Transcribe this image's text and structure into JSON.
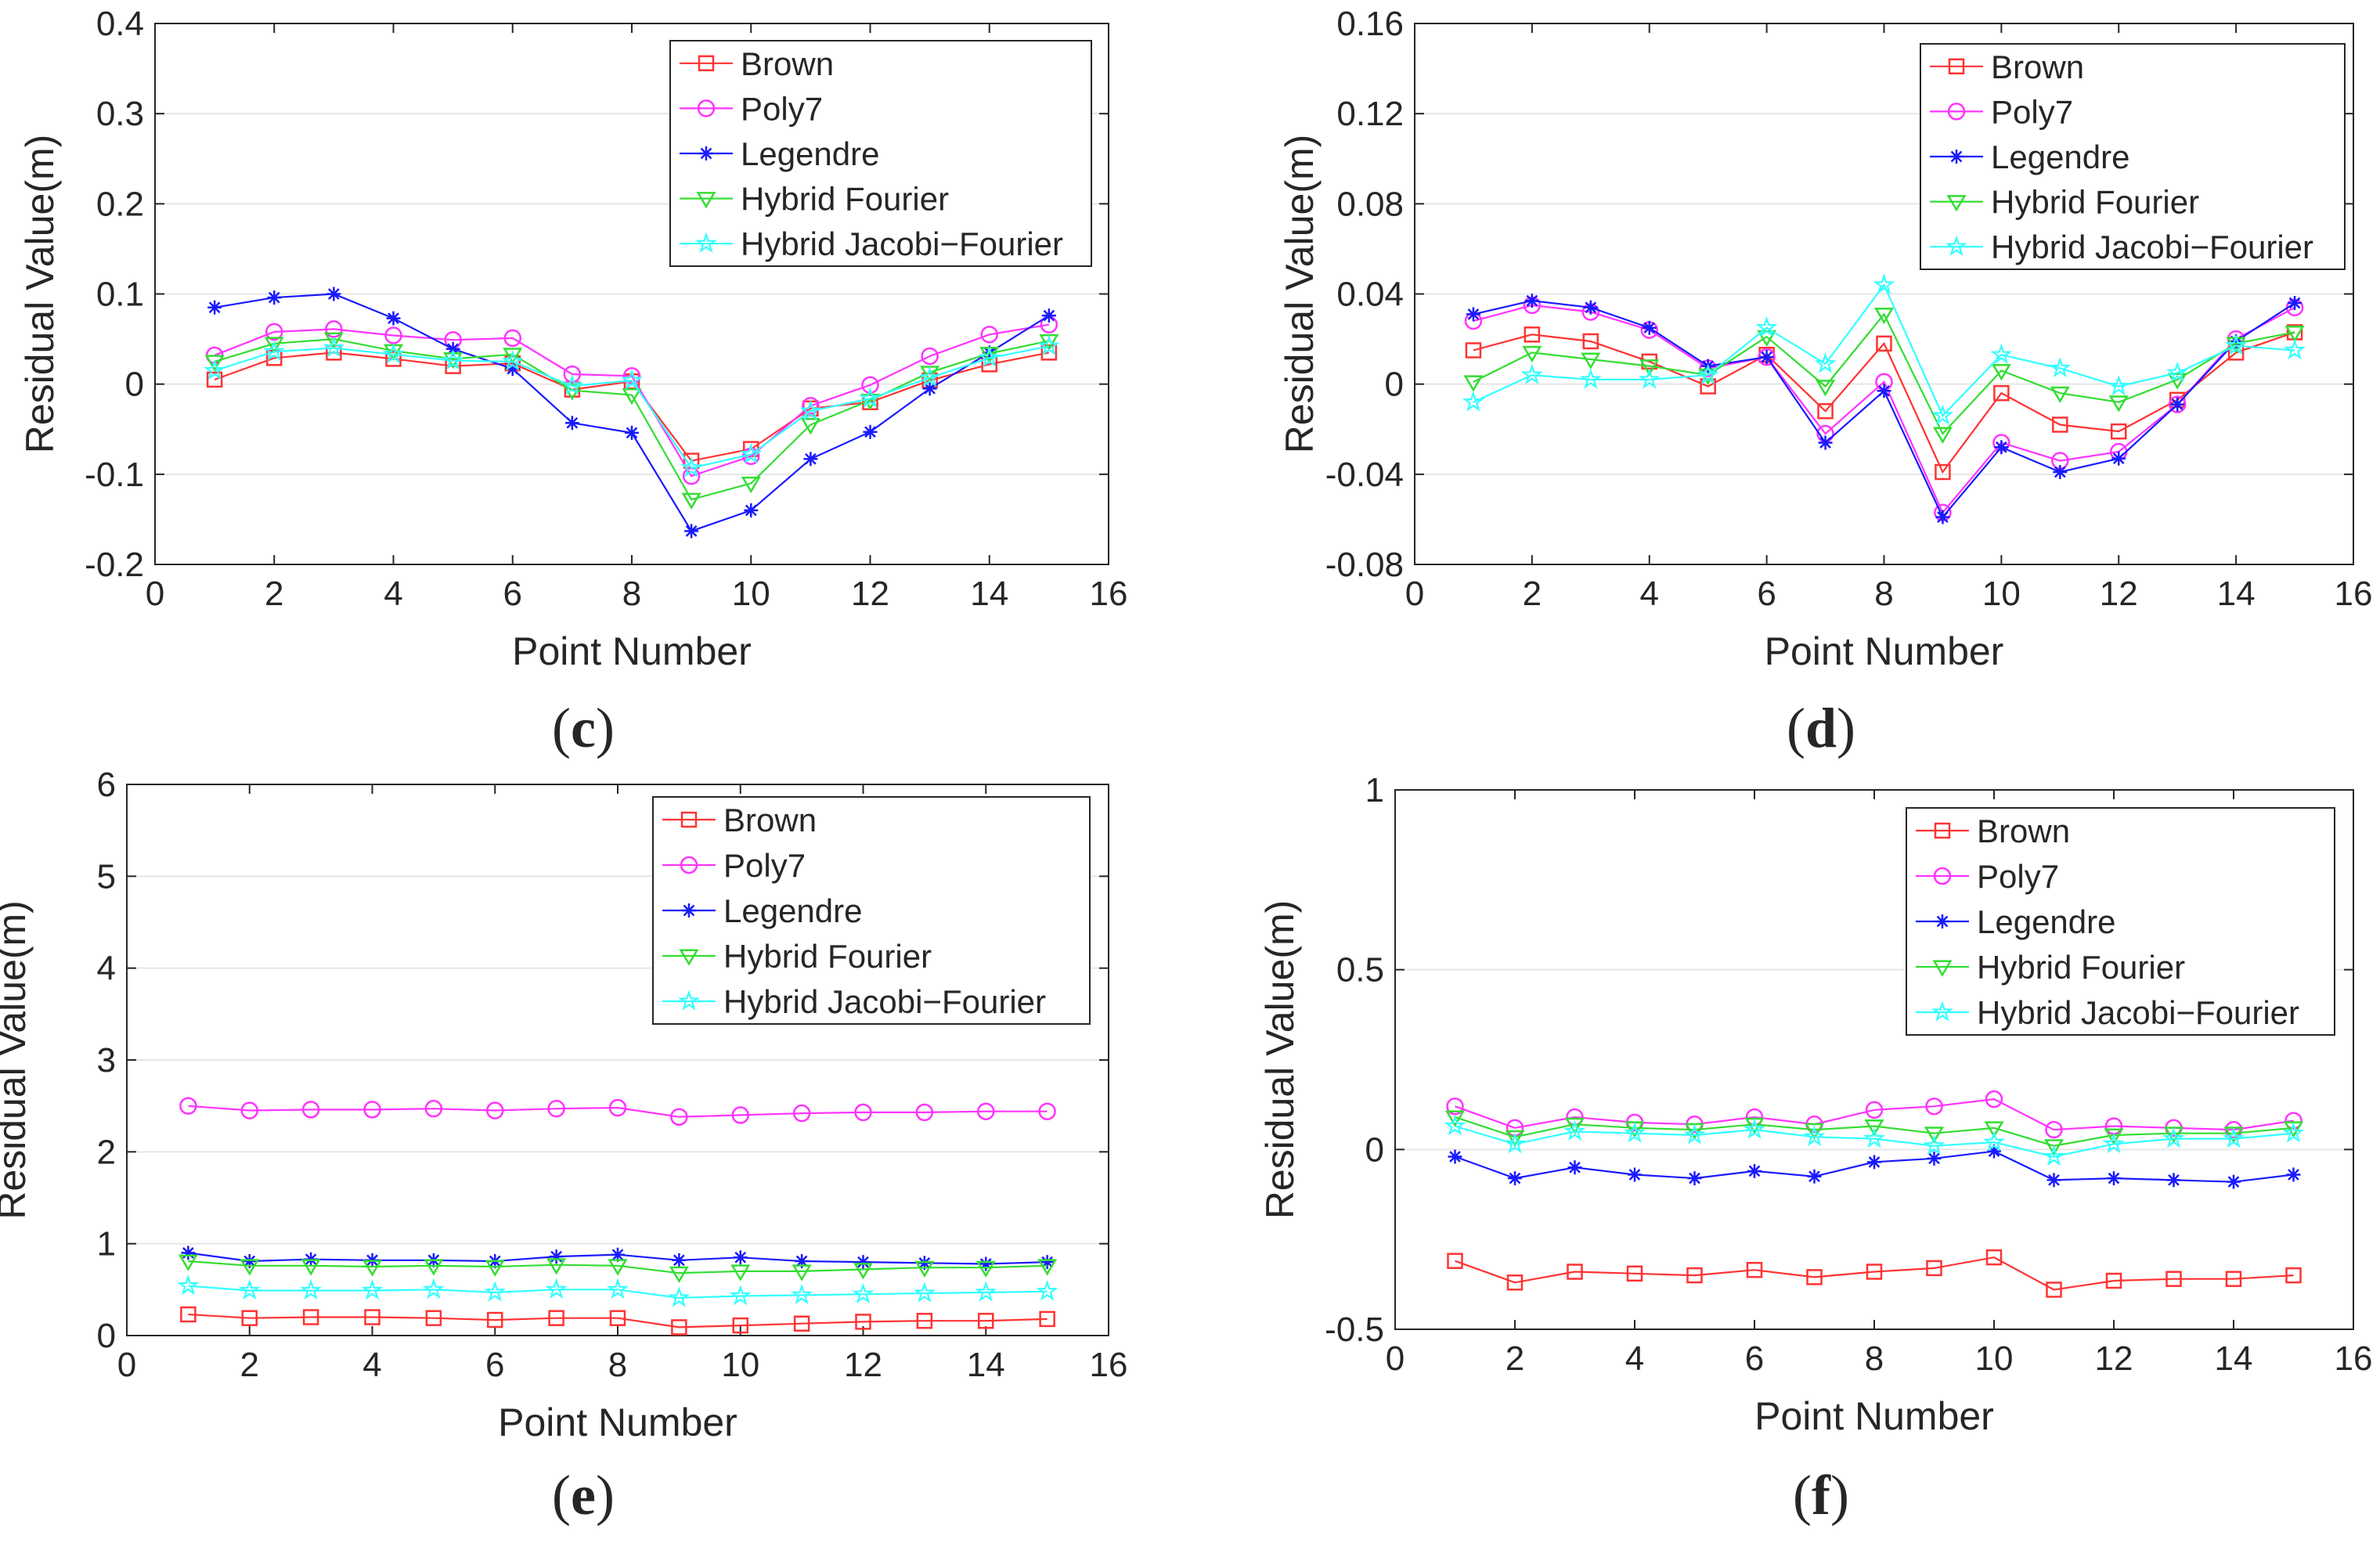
{
  "chart_data": [
    {
      "panel": "(c)",
      "type": "line",
      "xlabel": "Point Number",
      "ylabel": "Residual Value(m)",
      "xlim": [
        0,
        16
      ],
      "ylim": [
        -0.2,
        0.4
      ],
      "xticks": [
        0,
        2,
        4,
        6,
        8,
        10,
        12,
        14,
        16
      ],
      "yticks": [
        -0.2,
        -0.1,
        0,
        0.1,
        0.2,
        0.3,
        0.4
      ],
      "ytick_labels": [
        "-0.2",
        "-0.1",
        "0",
        "0.1",
        "0.2",
        "0.3",
        "0.4"
      ],
      "grid": true,
      "legend_position": "top-right",
      "x": [
        1,
        2,
        3,
        4,
        5,
        6,
        7,
        8,
        9,
        10,
        11,
        12,
        13,
        14,
        15
      ],
      "series": [
        {
          "name": "Brown",
          "color": "#ff3333",
          "marker": "square",
          "values": [
            0.005,
            0.029,
            0.035,
            0.028,
            0.02,
            0.023,
            -0.006,
            0.003,
            -0.085,
            -0.072,
            -0.027,
            -0.02,
            0.004,
            0.022,
            0.035
          ]
        },
        {
          "name": "Poly7",
          "color": "#ff33ff",
          "marker": "circle",
          "values": [
            0.032,
            0.058,
            0.061,
            0.054,
            0.049,
            0.051,
            0.011,
            0.009,
            -0.102,
            -0.08,
            -0.024,
            -0.001,
            0.031,
            0.055,
            0.066
          ]
        },
        {
          "name": "Legendre",
          "color": "#1a1aff",
          "marker": "star",
          "values": [
            0.085,
            0.096,
            0.1,
            0.073,
            0.039,
            0.017,
            -0.043,
            -0.054,
            -0.163,
            -0.14,
            -0.083,
            -0.053,
            -0.005,
            0.035,
            0.076
          ]
        },
        {
          "name": "Hybrid Fourier",
          "color": "#33dd33",
          "marker": "triangle-down",
          "values": [
            0.025,
            0.045,
            0.05,
            0.037,
            0.028,
            0.033,
            -0.007,
            -0.012,
            -0.128,
            -0.11,
            -0.045,
            -0.018,
            0.013,
            0.034,
            0.048
          ]
        },
        {
          "name": "Hybrid Jacobi−Fourier",
          "color": "#33ffff",
          "marker": "pentagram",
          "values": [
            0.015,
            0.036,
            0.04,
            0.033,
            0.026,
            0.025,
            -0.002,
            0.004,
            -0.093,
            -0.078,
            -0.03,
            -0.016,
            0.007,
            0.029,
            0.042
          ]
        }
      ]
    },
    {
      "panel": "(d)",
      "type": "line",
      "xlabel": "Point Number",
      "ylabel": "Residual Value(m)",
      "xlim": [
        0,
        16
      ],
      "ylim": [
        -0.08,
        0.16
      ],
      "xticks": [
        0,
        2,
        4,
        6,
        8,
        10,
        12,
        14,
        16
      ],
      "yticks": [
        -0.08,
        -0.04,
        0,
        0.04,
        0.08,
        0.12,
        0.16
      ],
      "ytick_labels": [
        "-0.08",
        "-0.04",
        "0",
        "0.04",
        "0.08",
        "0.12",
        "0.16"
      ],
      "grid": true,
      "legend_position": "top-right",
      "x": [
        1,
        2,
        3,
        4,
        5,
        6,
        7,
        8,
        9,
        10,
        11,
        12,
        13,
        14,
        15
      ],
      "series": [
        {
          "name": "Brown",
          "color": "#ff3333",
          "marker": "square",
          "values": [
            0.015,
            0.022,
            0.019,
            0.01,
            -0.001,
            0.013,
            -0.012,
            0.018,
            -0.039,
            -0.004,
            -0.018,
            -0.021,
            -0.007,
            0.014,
            0.023
          ]
        },
        {
          "name": "Poly7",
          "color": "#ff33ff",
          "marker": "circle",
          "values": [
            0.028,
            0.035,
            0.032,
            0.024,
            0.007,
            0.012,
            -0.022,
            0.001,
            -0.057,
            -0.026,
            -0.034,
            -0.03,
            -0.009,
            0.02,
            0.034
          ]
        },
        {
          "name": "Legendre",
          "color": "#1a1aff",
          "marker": "star",
          "values": [
            0.031,
            0.037,
            0.034,
            0.025,
            0.008,
            0.012,
            -0.026,
            -0.003,
            -0.059,
            -0.028,
            -0.039,
            -0.033,
            -0.009,
            0.019,
            0.036
          ]
        },
        {
          "name": "Hybrid Fourier",
          "color": "#33dd33",
          "marker": "triangle-down",
          "values": [
            0.001,
            0.014,
            0.011,
            0.008,
            0.004,
            0.021,
            -0.001,
            0.031,
            -0.022,
            0.006,
            -0.004,
            -0.008,
            0.002,
            0.018,
            0.023
          ]
        },
        {
          "name": "Hybrid Jacobi−Fourier",
          "color": "#33ffff",
          "marker": "pentagram",
          "values": [
            -0.008,
            0.004,
            0.002,
            0.002,
            0.004,
            0.025,
            0.009,
            0.044,
            -0.014,
            0.013,
            0.007,
            -0.001,
            0.005,
            0.017,
            0.015
          ]
        }
      ]
    },
    {
      "panel": "(e)",
      "type": "line",
      "xlabel": "Point Number",
      "ylabel": "Residual Value(m)",
      "xlim": [
        0,
        16
      ],
      "ylim": [
        0,
        6
      ],
      "xticks": [
        0,
        2,
        4,
        6,
        8,
        10,
        12,
        14,
        16
      ],
      "yticks": [
        0,
        1,
        2,
        3,
        4,
        5,
        6
      ],
      "ytick_labels": [
        "0",
        "1",
        "2",
        "3",
        "4",
        "5",
        "6"
      ],
      "grid": true,
      "legend_position": "top-right",
      "x": [
        1,
        2,
        3,
        4,
        5,
        6,
        7,
        8,
        9,
        10,
        11,
        12,
        13,
        14,
        15
      ],
      "series": [
        {
          "name": "Brown",
          "color": "#ff3333",
          "marker": "square",
          "values": [
            0.23,
            0.19,
            0.2,
            0.2,
            0.19,
            0.17,
            0.19,
            0.19,
            0.09,
            0.11,
            0.13,
            0.15,
            0.16,
            0.16,
            0.18
          ]
        },
        {
          "name": "Poly7",
          "color": "#ff33ff",
          "marker": "circle",
          "values": [
            2.5,
            2.45,
            2.46,
            2.46,
            2.47,
            2.45,
            2.47,
            2.48,
            2.38,
            2.4,
            2.42,
            2.43,
            2.43,
            2.44,
            2.44
          ]
        },
        {
          "name": "Legendre",
          "color": "#1a1aff",
          "marker": "star",
          "values": [
            0.9,
            0.81,
            0.83,
            0.82,
            0.82,
            0.81,
            0.86,
            0.88,
            0.82,
            0.85,
            0.81,
            0.8,
            0.79,
            0.78,
            0.8
          ]
        },
        {
          "name": "Hybrid Fourier",
          "color": "#33dd33",
          "marker": "triangle-down",
          "values": [
            0.81,
            0.76,
            0.76,
            0.75,
            0.76,
            0.75,
            0.77,
            0.76,
            0.68,
            0.7,
            0.7,
            0.72,
            0.74,
            0.74,
            0.76
          ]
        },
        {
          "name": "Hybrid Jacobi−Fourier",
          "color": "#33ffff",
          "marker": "pentagram",
          "values": [
            0.54,
            0.49,
            0.49,
            0.49,
            0.5,
            0.47,
            0.5,
            0.5,
            0.41,
            0.43,
            0.44,
            0.45,
            0.46,
            0.47,
            0.48
          ]
        }
      ]
    },
    {
      "panel": "(f)",
      "type": "line",
      "xlabel": "Point Number",
      "ylabel": "Residual Value(m)",
      "xlim": [
        0,
        16
      ],
      "ylim": [
        -0.5,
        1
      ],
      "xticks": [
        0,
        2,
        4,
        6,
        8,
        10,
        12,
        14,
        16
      ],
      "yticks": [
        -0.5,
        0,
        0.5,
        1
      ],
      "ytick_labels": [
        "-0.5",
        "0",
        "0.5",
        "1"
      ],
      "grid": true,
      "legend_position": "top-right",
      "x": [
        1,
        2,
        3,
        4,
        5,
        6,
        7,
        8,
        9,
        10,
        11,
        12,
        13,
        14,
        15
      ],
      "series": [
        {
          "name": "Brown",
          "color": "#ff3333",
          "marker": "square",
          "values": [
            -0.31,
            -0.37,
            -0.34,
            -0.345,
            -0.35,
            -0.335,
            -0.355,
            -0.34,
            -0.33,
            -0.3,
            -0.39,
            -0.365,
            -0.36,
            -0.36,
            -0.35
          ]
        },
        {
          "name": "Poly7",
          "color": "#ff33ff",
          "marker": "circle",
          "values": [
            0.12,
            0.06,
            0.09,
            0.075,
            0.07,
            0.09,
            0.07,
            0.11,
            0.12,
            0.14,
            0.055,
            0.065,
            0.06,
            0.055,
            0.08
          ]
        },
        {
          "name": "Legendre",
          "color": "#1a1aff",
          "marker": "star",
          "values": [
            -0.02,
            -0.08,
            -0.05,
            -0.07,
            -0.08,
            -0.06,
            -0.075,
            -0.035,
            -0.025,
            -0.005,
            -0.085,
            -0.08,
            -0.085,
            -0.09,
            -0.07
          ]
        },
        {
          "name": "Hybrid Fourier",
          "color": "#33dd33",
          "marker": "triangle-down",
          "values": [
            0.09,
            0.035,
            0.07,
            0.06,
            0.055,
            0.07,
            0.055,
            0.065,
            0.045,
            0.06,
            0.01,
            0.04,
            0.045,
            0.045,
            0.06
          ]
        },
        {
          "name": "Hybrid Jacobi−Fourier",
          "color": "#33ffff",
          "marker": "pentagram",
          "values": [
            0.065,
            0.015,
            0.05,
            0.045,
            0.04,
            0.055,
            0.035,
            0.03,
            0.01,
            0.02,
            -0.02,
            0.015,
            0.03,
            0.03,
            0.045
          ]
        }
      ]
    }
  ]
}
